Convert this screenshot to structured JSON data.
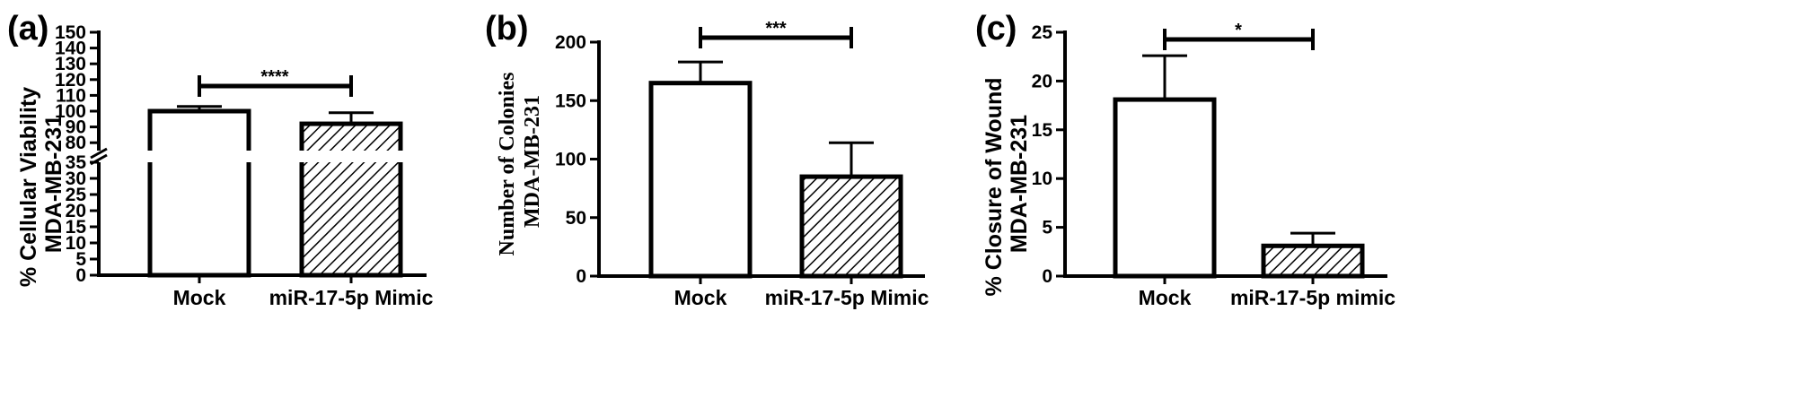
{
  "chart_data": [
    {
      "type": "bar",
      "panel_label": "(a)",
      "categories": [
        "Mock",
        "miR-17-5p Mimic"
      ],
      "values": [
        100,
        92
      ],
      "error": [
        3,
        7
      ],
      "patterns": [
        "none",
        "hatch"
      ],
      "ylabel_lines": [
        "% Cellular Viability",
        "MDA-MB-231"
      ],
      "ylim": [
        0,
        150
      ],
      "axis_break": [
        35,
        75
      ],
      "yticks_lower": [
        0,
        5,
        10,
        15,
        20,
        25,
        30,
        35
      ],
      "yticks_upper": [
        80,
        90,
        100,
        110,
        120,
        130,
        140,
        150
      ],
      "significance": "****"
    },
    {
      "type": "bar",
      "panel_label": "(b)",
      "categories": [
        "Mock",
        "miR-17-5p Mimic"
      ],
      "values": [
        165,
        85
      ],
      "error": [
        18,
        29
      ],
      "patterns": [
        "none",
        "hatch"
      ],
      "ylabel_lines": [
        "Number of Colonies",
        "MDA-MB-231"
      ],
      "ylim": [
        0,
        200
      ],
      "yticks": [
        0,
        50,
        100,
        150,
        200
      ],
      "significance": "***"
    },
    {
      "type": "bar",
      "panel_label": "(c)",
      "categories": [
        "Mock",
        "miR-17-5p mimic"
      ],
      "values": [
        18.1,
        3.1
      ],
      "error": [
        4.5,
        1.3
      ],
      "patterns": [
        "none",
        "hatch"
      ],
      "ylabel_lines": [
        "% Closure of Wound",
        "MDA-MB-231"
      ],
      "ylim": [
        0,
        25
      ],
      "yticks": [
        0,
        5,
        10,
        15,
        20,
        25
      ],
      "significance": "*"
    }
  ]
}
